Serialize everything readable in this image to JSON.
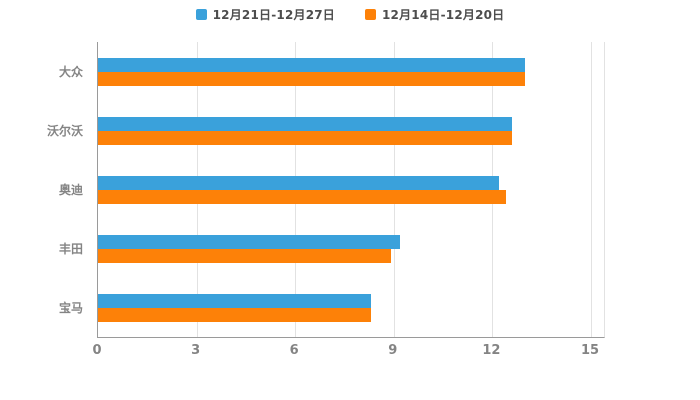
{
  "chart_data": {
    "type": "bar",
    "orientation": "horizontal",
    "title": "",
    "xlabel": "",
    "ylabel": "",
    "grid": true,
    "legend_position": "top",
    "xlim": [
      0,
      15
    ],
    "x_ticks": [
      0,
      3,
      6,
      9,
      12,
      15
    ],
    "categories": [
      "大众",
      "沃尔沃",
      "奥迪",
      "丰田",
      "宝马"
    ],
    "series": [
      {
        "name": "12月21日-12月27日",
        "color": "#3aa1db",
        "values": [
          13,
          12.6,
          12.2,
          9.2,
          8.3
        ]
      },
      {
        "name": "12月14日-12月20日",
        "color": "#fd8108",
        "values": [
          13,
          12.6,
          12.4,
          8.9,
          8.3
        ]
      }
    ]
  },
  "colors": {
    "axis_line": "#9a9a9a",
    "grid_line": "#e2e2e2",
    "label_text": "#848484",
    "legend_text": "#4d4d4d",
    "background": "#ffffff"
  }
}
